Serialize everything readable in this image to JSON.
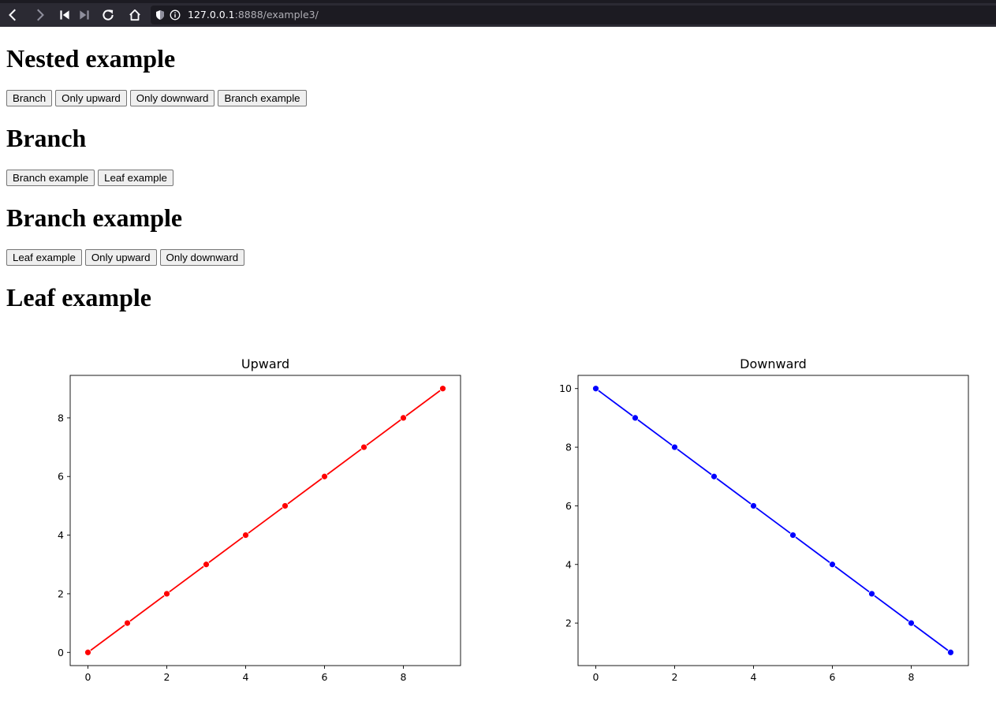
{
  "browser": {
    "url_host": "127.0.0.1",
    "url_rest": ":8888/example3/"
  },
  "sections": {
    "nested": {
      "title": "Nested example",
      "buttons": [
        "Branch",
        "Only upward",
        "Only downward",
        "Branch example"
      ]
    },
    "branch": {
      "title": "Branch",
      "buttons": [
        "Branch example",
        "Leaf example"
      ]
    },
    "branch_example": {
      "title": "Branch example",
      "buttons": [
        "Leaf example",
        "Only upward",
        "Only downward"
      ]
    },
    "leaf_example": {
      "title": "Leaf example"
    }
  },
  "chart_data": [
    {
      "type": "line",
      "title": "Upward",
      "color": "#ff0000",
      "x": [
        0,
        1,
        2,
        3,
        4,
        5,
        6,
        7,
        8,
        9
      ],
      "y": [
        0,
        1,
        2,
        3,
        4,
        5,
        6,
        7,
        8,
        9
      ],
      "xticks": [
        0,
        2,
        4,
        6,
        8
      ],
      "yticks": [
        0,
        2,
        4,
        6,
        8
      ],
      "xlim": [
        -0.45,
        9.45
      ],
      "ylim": [
        -0.45,
        9.45
      ]
    },
    {
      "type": "line",
      "title": "Downward",
      "color": "#0000ff",
      "x": [
        0,
        1,
        2,
        3,
        4,
        5,
        6,
        7,
        8,
        9
      ],
      "y": [
        10,
        9,
        8,
        7,
        6,
        5,
        4,
        3,
        2,
        1
      ],
      "xticks": [
        0,
        2,
        4,
        6,
        8
      ],
      "yticks": [
        2,
        4,
        6,
        8,
        10
      ],
      "xlim": [
        -0.45,
        9.45
      ],
      "ylim": [
        0.55,
        10.45
      ]
    }
  ]
}
